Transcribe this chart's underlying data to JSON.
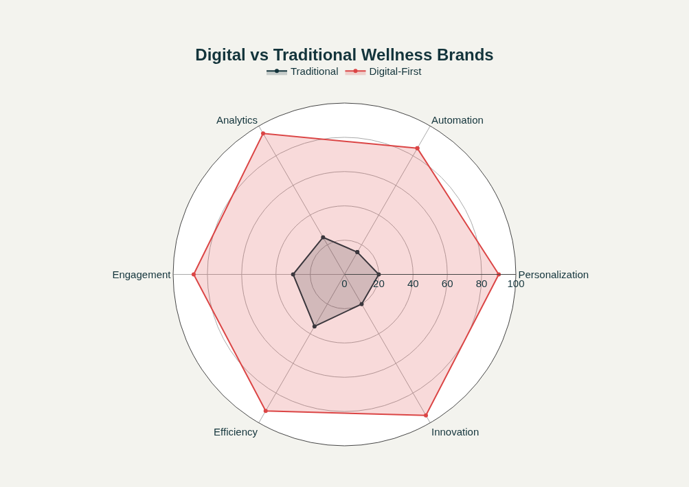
{
  "chart_data": {
    "type": "radar",
    "title": "Digital vs Traditional Wellness Brands",
    "categories": [
      "Automation",
      "Personalization",
      "Innovation",
      "Efficiency",
      "Engagement",
      "Analytics"
    ],
    "series": [
      {
        "name": "Traditional",
        "color": "#13343b",
        "values": [
          15,
          20,
          20,
          35,
          30,
          25
        ]
      },
      {
        "name": "Digital-First",
        "color": "#db4545",
        "values": [
          85,
          90,
          95,
          92,
          88,
          95
        ]
      }
    ],
    "ylim": [
      0,
      100
    ],
    "yticks": [
      0,
      20,
      40,
      60,
      80,
      100
    ],
    "grid": true,
    "legend": "top",
    "marker": "circle",
    "line_style": "solid"
  }
}
